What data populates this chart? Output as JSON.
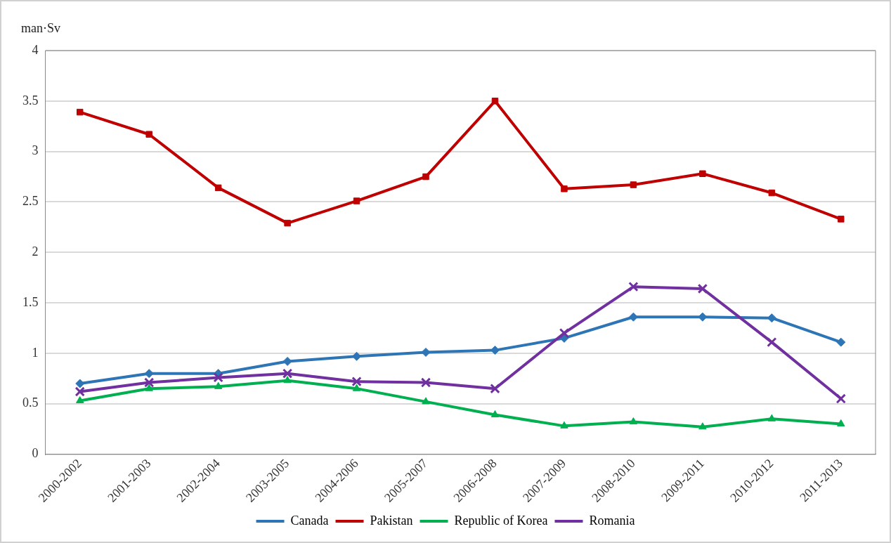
{
  "chart_data": {
    "type": "line",
    "ylabel": "man·Sv",
    "categories": [
      "2000-2002",
      "2001-2003",
      "2002-2004",
      "2003-2005",
      "2004-2006",
      "2005-2007",
      "2006-2008",
      "2007-2009",
      "2008-2010",
      "2009-2011",
      "2010-2012",
      "2011-2013"
    ],
    "series": [
      {
        "name": "Canada",
        "color": "#2e75b6",
        "marker": "diamond",
        "values": [
          0.7,
          0.8,
          0.8,
          0.92,
          0.97,
          1.01,
          1.03,
          1.15,
          1.36,
          1.36,
          1.35,
          1.11
        ]
      },
      {
        "name": "Pakistan",
        "color": "#c00000",
        "marker": "square",
        "values": [
          3.39,
          3.17,
          2.64,
          2.29,
          2.51,
          2.75,
          3.5,
          2.63,
          2.67,
          2.78,
          2.59,
          2.33
        ]
      },
      {
        "name": "Republic of Korea",
        "color": "#00b050",
        "marker": "triangle",
        "values": [
          0.53,
          0.65,
          0.67,
          0.73,
          0.65,
          0.52,
          0.39,
          0.28,
          0.32,
          0.27,
          0.35,
          0.3
        ]
      },
      {
        "name": "Romania",
        "color": "#7030a0",
        "marker": "cross",
        "values": [
          0.62,
          0.71,
          0.76,
          0.8,
          0.72,
          0.71,
          0.65,
          1.2,
          1.66,
          1.64,
          1.11,
          0.55
        ]
      }
    ],
    "ylim": [
      0,
      4
    ],
    "yticks": [
      0,
      0.5,
      1,
      1.5,
      2,
      2.5,
      3,
      3.5,
      4
    ],
    "grid": "y",
    "legend": "bottom"
  }
}
